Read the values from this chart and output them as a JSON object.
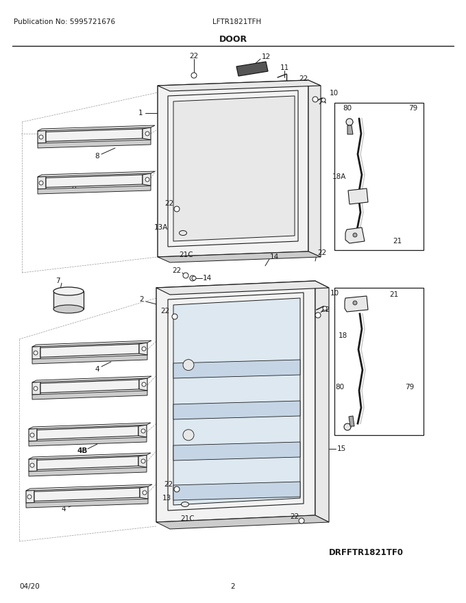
{
  "title": "DOOR",
  "pub_no": "Publication No: 5995721676",
  "model": "LFTR1821TFH",
  "diagram_id": "DRFFTR1821TF0",
  "footer_date": "04/20",
  "footer_page": "2",
  "bg_color": "#ffffff",
  "line_color": "#1a1a1a",
  "text_color": "#1a1a1a",
  "gray_fill": "#e8e8e8",
  "dark_gray": "#aaaaaa",
  "mid_gray": "#cccccc",
  "light_gray": "#f2f2f2"
}
